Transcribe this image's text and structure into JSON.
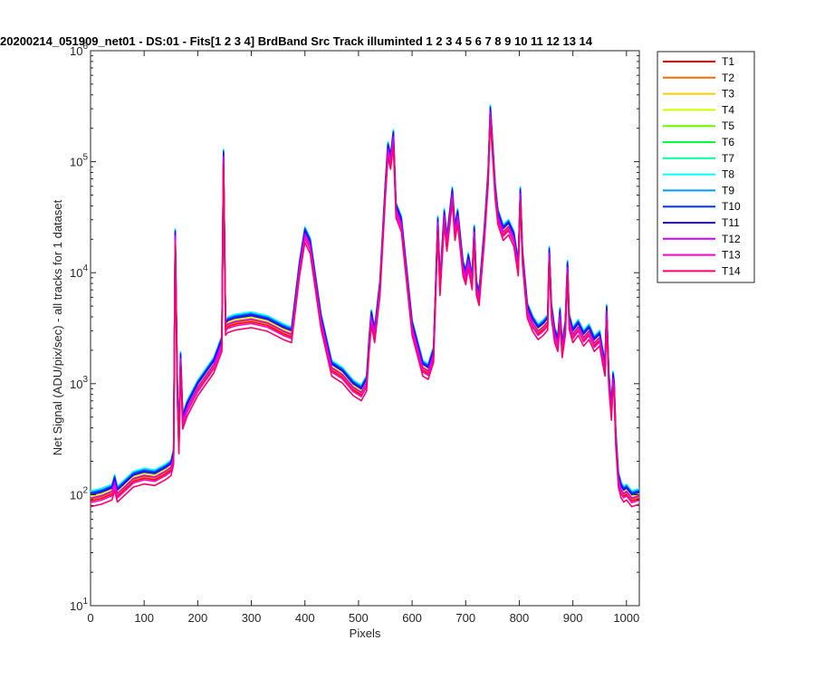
{
  "chart_data": {
    "type": "line",
    "title": "20200214_051909_net01 - DS:01 - Fits[1  2  3  4]   BrdBand Src     Track illuminted 1   2   3   4   5   6   7   8   9  10  11  12  13  14",
    "xlabel": "Pixels",
    "ylabel": "Net Signal (ADU/pix/sec) - all tracks for 1 dataset",
    "xlim": [
      0,
      1024
    ],
    "ylim": [
      10,
      1000000
    ],
    "yscale": "log",
    "xticks": [
      0,
      100,
      200,
      300,
      400,
      500,
      600,
      700,
      800,
      900,
      1000
    ],
    "yticks": [
      {
        "value": 10,
        "base": "10",
        "exp": "1"
      },
      {
        "value": 100,
        "base": "10",
        "exp": "2"
      },
      {
        "value": 1000,
        "base": "10",
        "exp": "3"
      },
      {
        "value": 10000,
        "base": "10",
        "exp": "4"
      },
      {
        "value": 100000,
        "base": "10",
        "exp": "5"
      },
      {
        "value": 1000000,
        "base": "10",
        "exp": "6"
      }
    ],
    "grid": false,
    "legend_position": "outside-right",
    "reference_track": {
      "x": [
        0,
        20,
        40,
        45,
        50,
        80,
        100,
        120,
        140,
        150,
        155,
        158,
        162,
        165,
        168,
        172,
        180,
        200,
        230,
        245,
        248,
        252,
        256,
        270,
        300,
        330,
        360,
        375,
        390,
        400,
        410,
        430,
        450,
        470,
        490,
        505,
        515,
        520,
        524,
        530,
        540,
        550,
        555,
        560,
        565,
        570,
        580,
        600,
        620,
        630,
        640,
        648,
        652,
        660,
        665,
        675,
        680,
        685,
        695,
        700,
        705,
        712,
        716,
        720,
        725,
        735,
        742,
        746,
        750,
        755,
        760,
        770,
        780,
        790,
        798,
        802,
        806,
        815,
        825,
        835,
        845,
        853,
        856,
        860,
        866,
        872,
        876,
        880,
        886,
        890,
        893,
        900,
        910,
        920,
        930,
        940,
        950,
        955,
        960,
        963,
        967,
        970,
        972,
        975,
        977,
        980,
        985,
        990,
        995,
        1000,
        1010,
        1024
      ],
      "y": [
        100,
        105,
        115,
        140,
        110,
        150,
        160,
        155,
        175,
        190,
        240,
        23000,
        900,
        300,
        1800,
        500,
        650,
        1000,
        1600,
        2500,
        120000,
        3500,
        3700,
        3900,
        4100,
        3800,
        3200,
        3000,
        12000,
        24000,
        19000,
        4000,
        1500,
        1300,
        1000,
        900,
        1100,
        2500,
        4300,
        3000,
        8000,
        60000,
        140000,
        110000,
        180000,
        40000,
        30000,
        3500,
        1500,
        1400,
        2000,
        30000,
        8000,
        35000,
        20000,
        55000,
        25000,
        35000,
        12000,
        10000,
        14000,
        9000,
        25000,
        8000,
        6500,
        25000,
        80000,
        300000,
        150000,
        60000,
        35000,
        25000,
        28000,
        22000,
        12000,
        55000,
        15000,
        5000,
        3800,
        3200,
        3500,
        3900,
        16000,
        5000,
        3000,
        2500,
        4500,
        2200,
        3500,
        12000,
        4000,
        3000,
        3500,
        2800,
        3200,
        2500,
        2800,
        2000,
        1500,
        4800,
        1200,
        800,
        600,
        1200,
        1000,
        350,
        150,
        120,
        110,
        115,
        100,
        105
      ]
    },
    "series": [
      {
        "name": "T1",
        "color": "#ff0000",
        "scale": 0.88
      },
      {
        "name": "T2",
        "color": "#ff6a00",
        "scale": 0.91
      },
      {
        "name": "T3",
        "color": "#ffcc00",
        "scale": 0.94
      },
      {
        "name": "T4",
        "color": "#ccff00",
        "scale": 0.97
      },
      {
        "name": "T5",
        "color": "#66ff00",
        "scale": 1.0
      },
      {
        "name": "T6",
        "color": "#00ff33",
        "scale": 1.02
      },
      {
        "name": "T7",
        "color": "#00ff99",
        "scale": 1.04
      },
      {
        "name": "T8",
        "color": "#00ffff",
        "scale": 1.08
      },
      {
        "name": "T9",
        "color": "#0099ff",
        "scale": 1.05
      },
      {
        "name": "T10",
        "color": "#0033ff",
        "scale": 1.03
      },
      {
        "name": "T11",
        "color": "#3300ff",
        "scale": 1.0
      },
      {
        "name": "T12",
        "color": "#cc00ff",
        "scale": 0.93
      },
      {
        "name": "T13",
        "color": "#ff00cc",
        "scale": 0.85
      },
      {
        "name": "T14",
        "color": "#ff0066",
        "scale": 0.78
      }
    ]
  }
}
